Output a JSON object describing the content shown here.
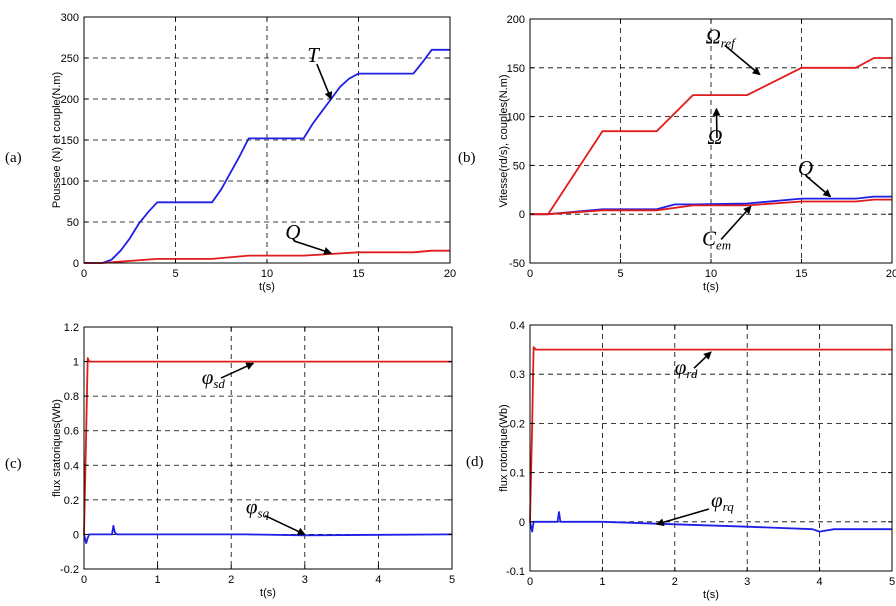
{
  "colors": {
    "blue": "#1f1fe6",
    "red": "#e01b1b",
    "grid": "#000000"
  },
  "chart_data": [
    {
      "id": "a",
      "type": "line",
      "panel_label": "(a)",
      "xlabel": "t(s)",
      "ylabel": "Poussee (N) et couple(N.m)",
      "xlim": [
        0,
        20
      ],
      "ylim": [
        0,
        300
      ],
      "xticks": [
        0,
        5,
        10,
        15,
        20
      ],
      "yticks": [
        0,
        50,
        100,
        150,
        200,
        250,
        300
      ],
      "grid": true,
      "series": [
        {
          "color": "blue",
          "x": [
            0,
            1,
            1.5,
            2,
            2.5,
            3,
            3.5,
            4,
            5,
            7,
            7.5,
            8,
            8.5,
            9,
            10,
            12,
            12.5,
            13,
            13.5,
            14,
            14.5,
            15,
            16,
            18,
            18.5,
            19,
            20
          ],
          "y": [
            0,
            0,
            4,
            15,
            30,
            48,
            62,
            74,
            74,
            74,
            90,
            110,
            130,
            152,
            152,
            152,
            170,
            185,
            200,
            215,
            225,
            231,
            231,
            231,
            245,
            260,
            260
          ]
        },
        {
          "color": "red",
          "x": [
            0,
            1,
            4,
            7,
            9,
            12,
            15,
            18,
            19,
            20
          ],
          "y": [
            0,
            0,
            5,
            5,
            9,
            9,
            13,
            13,
            15,
            15
          ]
        }
      ],
      "annotations": [
        {
          "base": "T",
          "sub": "",
          "tx": 12.2,
          "ty": 245,
          "ax": 13.5,
          "ay": 200
        },
        {
          "base": "Q",
          "sub": "",
          "tx": 11.0,
          "ty": 29,
          "ax": 13.5,
          "ay": 12
        }
      ]
    },
    {
      "id": "b",
      "type": "line",
      "panel_label": "(b)",
      "xlabel": "t(s)",
      "ylabel": "Vitesse(rd/s), couples(N.m)",
      "xlim": [
        0,
        20
      ],
      "ylim": [
        -50,
        200
      ],
      "xticks": [
        0,
        5,
        10,
        15,
        20
      ],
      "yticks": [
        -50,
        0,
        50,
        100,
        150,
        200
      ],
      "grid": true,
      "series": [
        {
          "color": "blue",
          "x": [
            0,
            1,
            4,
            7,
            8,
            9,
            12,
            15,
            18,
            19,
            20
          ],
          "y": [
            0,
            0,
            5,
            5,
            10,
            10,
            11,
            16,
            16,
            18,
            18
          ]
        },
        {
          "color": "red",
          "x": [
            0,
            1,
            4,
            7,
            9,
            12,
            15,
            18,
            19,
            20
          ],
          "y": [
            0,
            0,
            85,
            85,
            122,
            122,
            150,
            150,
            160,
            160
          ]
        },
        {
          "color": "red",
          "x": [
            0,
            1,
            4,
            7,
            9,
            12,
            15,
            18,
            19,
            20
          ],
          "y": [
            0,
            0,
            4,
            4,
            9,
            9,
            13,
            13,
            15,
            15
          ]
        }
      ],
      "annotations": [
        {
          "base": "Ω",
          "sub": "ref",
          "tx": 9.7,
          "ty": 175,
          "ax": 12.7,
          "ay": 143
        },
        {
          "base": "Ω",
          "sub": "",
          "tx": 9.8,
          "ty": 72,
          "ax": 10.3,
          "ay": 108
        },
        {
          "base": "Q",
          "sub": "",
          "tx": 14.8,
          "ty": 40,
          "ax": 16.6,
          "ay": 18
        },
        {
          "base": "C",
          "sub": "em",
          "tx": 9.5,
          "ty": -32,
          "ax": 12.2,
          "ay": 8
        }
      ]
    },
    {
      "id": "c",
      "type": "line",
      "panel_label": "(c)",
      "xlabel": "t(s)",
      "ylabel": "flux statoriques(Wb)",
      "xlim": [
        0,
        5
      ],
      "ylim": [
        -0.2,
        1.2
      ],
      "xticks": [
        0,
        1,
        2,
        3,
        4,
        5
      ],
      "yticks": [
        -0.2,
        0,
        0.2,
        0.4,
        0.6,
        0.8,
        1,
        1.2
      ],
      "grid": true,
      "series": [
        {
          "color": "red",
          "x": [
            0,
            0.03,
            0.05,
            0.07,
            0.1,
            5
          ],
          "y": [
            0,
            0.6,
            1.02,
            1.0,
            1.0,
            1.0
          ]
        },
        {
          "color": "blue",
          "x": [
            0,
            0.03,
            0.05,
            0.07,
            0.1,
            0.38,
            0.4,
            0.42,
            0.45,
            2.2,
            3,
            5
          ],
          "y": [
            0,
            -0.05,
            -0.02,
            0,
            0,
            0,
            0.05,
            0.01,
            0,
            0,
            -0.005,
            0
          ]
        }
      ],
      "annotations": [
        {
          "base": "φ",
          "sub": "sd",
          "tx": 1.6,
          "ty": 0.87,
          "ax": 2.3,
          "ay": 0.99
        },
        {
          "base": "φ",
          "sub": "sq",
          "tx": 2.2,
          "ty": 0.12,
          "ax": 3.0,
          "ay": 0.0
        }
      ]
    },
    {
      "id": "d",
      "type": "line",
      "panel_label": "(d)",
      "xlabel": "t(s)",
      "ylabel": "flux rotorique(Wb)",
      "xlim": [
        0,
        5
      ],
      "ylim": [
        -0.1,
        0.4
      ],
      "xticks": [
        0,
        1,
        2,
        3,
        4,
        5
      ],
      "yticks": [
        -0.1,
        0,
        0.1,
        0.2,
        0.3,
        0.4
      ],
      "grid": true,
      "series": [
        {
          "color": "red",
          "x": [
            0,
            0.03,
            0.05,
            0.08,
            0.15,
            5
          ],
          "y": [
            0,
            0.2,
            0.355,
            0.35,
            0.35,
            0.35
          ]
        },
        {
          "color": "blue",
          "x": [
            0,
            0.03,
            0.05,
            0.08,
            0.38,
            0.4,
            0.42,
            0.45,
            1,
            2,
            3,
            3.9,
            4,
            4.2,
            5
          ],
          "y": [
            0,
            -0.02,
            0,
            0,
            0,
            0.02,
            0,
            0,
            0,
            -0.005,
            -0.01,
            -0.015,
            -0.02,
            -0.015,
            -0.015
          ]
        }
      ],
      "annotations": [
        {
          "base": "φ",
          "sub": "rd",
          "tx": 2.0,
          "ty": 0.3,
          "ax": 2.5,
          "ay": 0.345
        },
        {
          "base": "φ",
          "sub": "rq",
          "tx": 2.5,
          "ty": 0.03,
          "ax": 1.75,
          "ay": -0.005
        }
      ]
    }
  ]
}
